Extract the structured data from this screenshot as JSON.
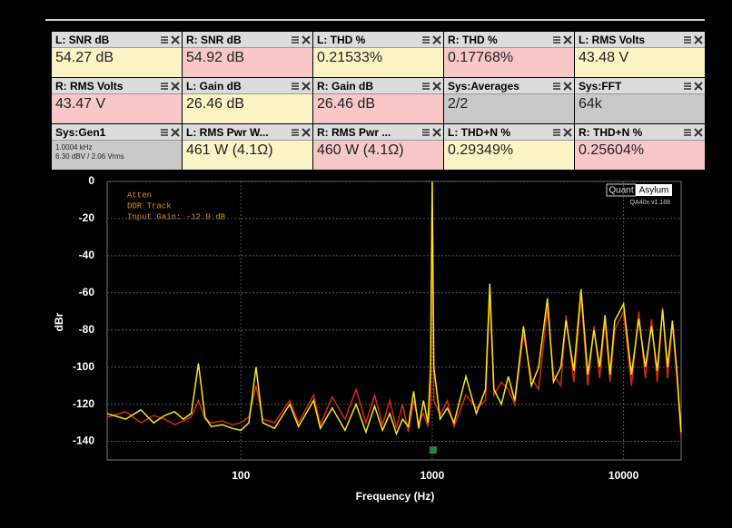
{
  "tiles": [
    {
      "title": "L: SNR dB",
      "value": "54.27 dB"
    },
    {
      "title": "R: SNR dB",
      "value": "54.92 dB"
    },
    {
      "title": "L: THD %",
      "value": "0.21533%"
    },
    {
      "title": "R: THD %",
      "value": "0.17768%"
    },
    {
      "title": "L: RMS Volts",
      "value": "43.48 V"
    },
    {
      "title": "R: RMS Volts",
      "value": "43.47 V"
    },
    {
      "title": "L: Gain dB",
      "value": "26.46 dB"
    },
    {
      "title": "R: Gain dB",
      "value": "26.46 dB"
    },
    {
      "title": "Sys:Averages",
      "value": "2/2"
    },
    {
      "title": "Sys:FFT",
      "value": "64k"
    },
    {
      "title": "Sys:Gen1",
      "lines": [
        "1.0004 kHz",
        "6.30 dBV  / 2.06 Vrms"
      ]
    },
    {
      "title": "L: RMS Pwr W...",
      "value": "461 W (4.1Ω)"
    },
    {
      "title": "R: RMS Pwr ...",
      "value": "460 W (4.1Ω)"
    },
    {
      "title": "L: THD+N %",
      "value": "0.29349%"
    },
    {
      "title": "R: THD+N %",
      "value": "0.25604%"
    }
  ],
  "chart_data": {
    "type": "line",
    "xlabel": "Frequency (Hz)",
    "ylabel": "dBr",
    "annotations": [
      "Atten",
      "DDR Track",
      "Input Gain: -12.0 dB"
    ],
    "brand": [
      "Quant",
      "Asylum"
    ],
    "version": "QA40x v1.188",
    "xscale": "log",
    "grid": true,
    "xlim": [
      20,
      20000
    ],
    "xticks": [
      100,
      1000,
      10000
    ],
    "ylim": [
      -150,
      0
    ],
    "yticks": [
      0,
      -20,
      -40,
      -60,
      -80,
      -100,
      -120,
      -140
    ],
    "x": [
      20,
      25,
      30,
      35,
      40,
      45,
      50,
      55,
      60,
      65,
      70,
      80,
      90,
      100,
      110,
      120,
      130,
      150,
      180,
      200,
      240,
      260,
      300,
      350,
      400,
      450,
      500,
      550,
      600,
      650,
      700,
      750,
      800,
      850,
      900,
      950,
      980,
      1000,
      1020,
      1100,
      1200,
      1300,
      1500,
      1700,
      1900,
      2000,
      2100,
      2300,
      2500,
      2700,
      3000,
      3300,
      3600,
      4000,
      4300,
      4700,
      5000,
      5500,
      6000,
      6500,
      7000,
      7500,
      8000,
      8500,
      9000,
      10000,
      11000,
      12000,
      13000,
      14000,
      15000,
      16000,
      17000,
      18000,
      19000,
      20000
    ],
    "series": [
      {
        "color": "#d42a10",
        "values": [
          -127,
          -124,
          -130,
          -126,
          -128,
          -131,
          -129,
          -127,
          -118,
          -128,
          -130,
          -129,
          -131,
          -130,
          -127,
          -110,
          -128,
          -130,
          -118,
          -130,
          -115,
          -131,
          -116,
          -128,
          -112,
          -130,
          -115,
          -131,
          -118,
          -133,
          -120,
          -135,
          -118,
          -130,
          -125,
          -132,
          -120,
          -1,
          -118,
          -126,
          -118,
          -132,
          -115,
          -122,
          -118,
          -60,
          -115,
          -108,
          -112,
          -120,
          -82,
          -106,
          -112,
          -68,
          -104,
          -110,
          -72,
          -108,
          -62,
          -110,
          -78,
          -106,
          -75,
          -108,
          -80,
          -70,
          -110,
          -70,
          -106,
          -74,
          -108,
          -68,
          -106,
          -77,
          -106,
          -138
        ]
      },
      {
        "color": "#f5e61a",
        "values": [
          -125,
          -128,
          -123,
          -130,
          -126,
          -124,
          -128,
          -125,
          -98,
          -127,
          -132,
          -131,
          -133,
          -134,
          -130,
          -100,
          -130,
          -133,
          -120,
          -132,
          -118,
          -133,
          -122,
          -134,
          -120,
          -135,
          -121,
          -134,
          -125,
          -136,
          -128,
          -132,
          -113,
          -133,
          -118,
          -130,
          -100,
          0,
          -100,
          -128,
          -122,
          -130,
          -105,
          -125,
          -112,
          -55,
          -112,
          -120,
          -105,
          -118,
          -78,
          -110,
          -100,
          -63,
          -108,
          -100,
          -75,
          -102,
          -58,
          -104,
          -80,
          -100,
          -72,
          -104,
          -75,
          -66,
          -104,
          -74,
          -100,
          -78,
          -102,
          -69,
          -100,
          -75,
          -102,
          -135
        ]
      }
    ]
  }
}
